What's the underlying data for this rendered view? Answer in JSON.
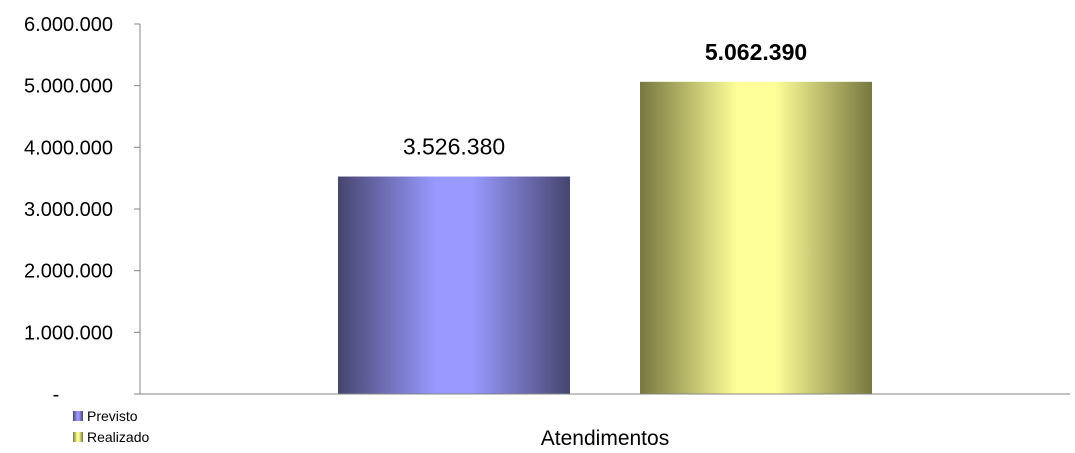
{
  "chart_data": {
    "type": "bar",
    "categories": [
      "Atendimentos"
    ],
    "series": [
      {
        "name": "Previsto",
        "values": [
          3526380
        ],
        "label": "3.526.380",
        "label_bold": false,
        "color": "#9999ff",
        "color_dark": "#45456f"
      },
      {
        "name": "Realizado",
        "values": [
          5062390
        ],
        "label": "5.062.390",
        "label_bold": true,
        "color": "#ffff99",
        "color_dark": "#77773f"
      }
    ],
    "ylim": [
      0,
      6000000
    ],
    "yticks": [
      {
        "value": 0,
        "label": "-"
      },
      {
        "value": 1000000,
        "label": "1.000.000"
      },
      {
        "value": 2000000,
        "label": "2.000.000"
      },
      {
        "value": 3000000,
        "label": "3.000.000"
      },
      {
        "value": 4000000,
        "label": "4.000.000"
      },
      {
        "value": 5000000,
        "label": "5.000.000"
      },
      {
        "value": 6000000,
        "label": "6.000.000"
      }
    ],
    "grid": false,
    "legend": "bottom-left"
  }
}
